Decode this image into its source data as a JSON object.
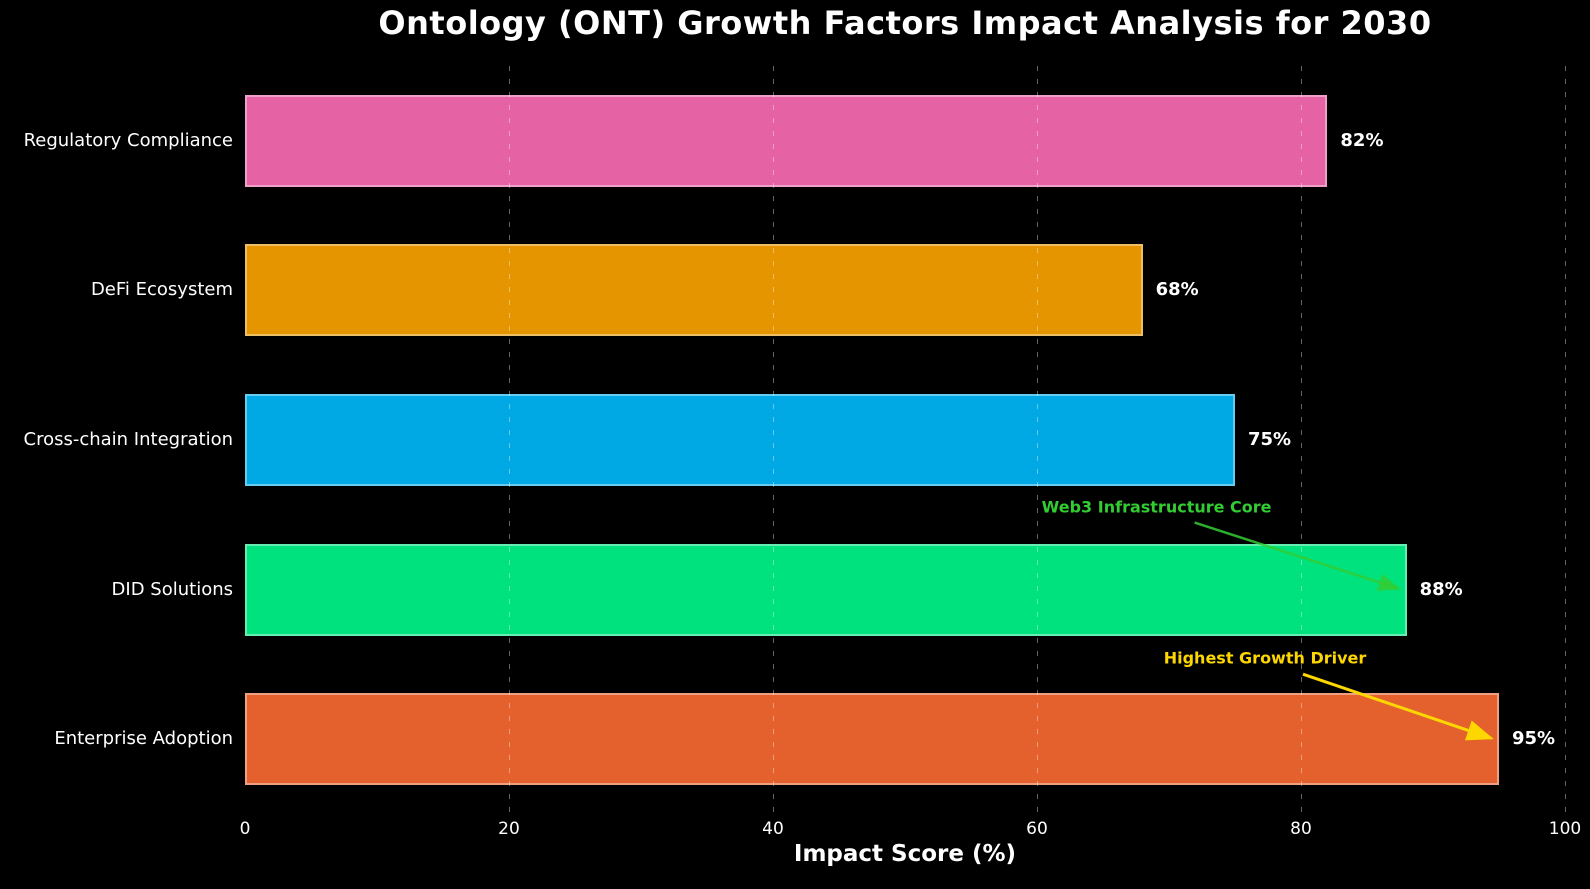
{
  "title": "Ontology (ONT) Growth Factors Impact Analysis for 2030",
  "chart_data": {
    "type": "bar",
    "orientation": "horizontal",
    "title": "Ontology (ONT) Growth Factors Impact Analysis for 2030",
    "categories": [
      "Regulatory Compliance",
      "DeFi Ecosystem",
      "Cross-chain Integration",
      "DID Solutions",
      "Enterprise Adoption"
    ],
    "values": [
      82,
      68,
      75,
      88,
      95
    ],
    "value_labels": [
      "82%",
      "68%",
      "75%",
      "88%",
      "95%"
    ],
    "bar_colors": [
      "#e562a4",
      "#e59500",
      "#00a9e3",
      "#00e27d",
      "#e4612e"
    ],
    "xlabel": "Impact Score (%)",
    "ylabel": "",
    "xlim": [
      0,
      100
    ],
    "xticks": [
      "0",
      "20",
      "40",
      "60",
      "80",
      "100"
    ],
    "grid": "vertical-dashed",
    "legend": "none",
    "background_color": "#000000",
    "text_color": "#ffffff",
    "annotations": [
      {
        "text": "Web3 Infrastructure Core",
        "color": "#32cd32",
        "target_category": "DID Solutions",
        "target_value": 88
      },
      {
        "text": "Highest Growth Driver",
        "color": "#ffd700",
        "target_category": "Enterprise Adoption",
        "target_value": 95
      }
    ]
  }
}
